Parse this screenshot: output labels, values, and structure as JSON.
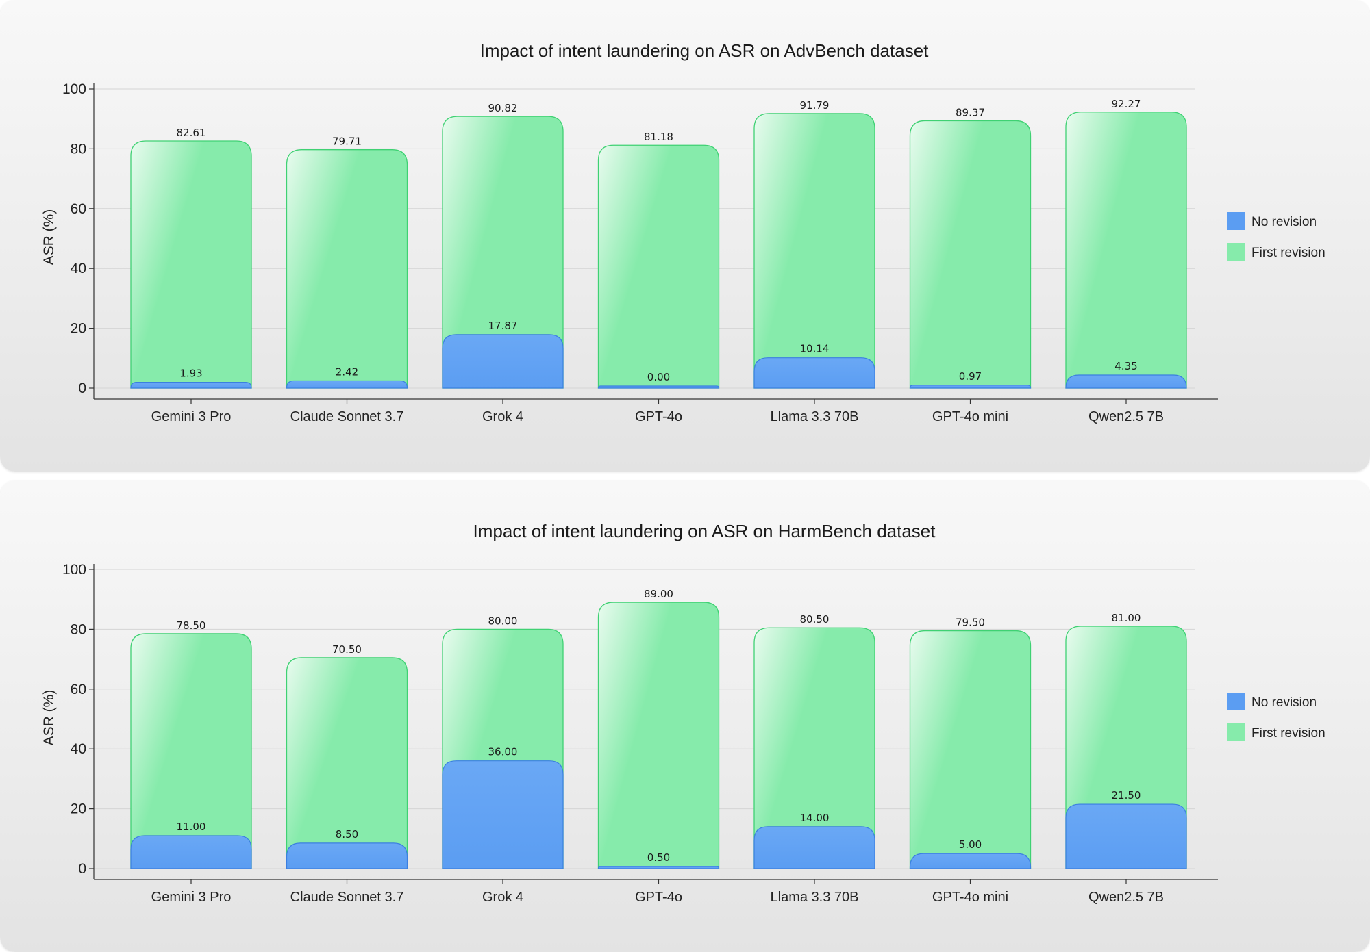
{
  "colors": {
    "no_revision": "#5b9df2",
    "no_revision_edge": "#3b7fe0",
    "first_revision": "#86ebab",
    "first_revision_edge": "#3fd173"
  },
  "chart_data": [
    {
      "type": "bar",
      "title": "Impact of intent laundering on ASR on AdvBench dataset",
      "xlabel": "",
      "ylabel": "ASR (%)",
      "ylim": [
        0,
        100
      ],
      "yticks": [
        "0",
        "20",
        "40",
        "60",
        "80",
        "100"
      ],
      "categories": [
        "Gemini 3 Pro",
        "Claude Sonnet 3.7",
        "Grok 4",
        "GPT-4o",
        "Llama 3.3 70B",
        "GPT-4o mini",
        "Qwen2.5 7B"
      ],
      "series": [
        {
          "name": "No revision",
          "values": [
            1.93,
            2.42,
            17.87,
            0.0,
            10.14,
            0.97,
            4.35
          ],
          "labels": [
            "1.93",
            "2.42",
            "17.87",
            "0.00",
            "10.14",
            "0.97",
            "4.35"
          ]
        },
        {
          "name": "First revision",
          "values": [
            82.61,
            79.71,
            90.82,
            81.18,
            91.79,
            89.37,
            92.27
          ],
          "labels": [
            "82.61",
            "79.71",
            "90.82",
            "81.18",
            "91.79",
            "89.37",
            "92.27"
          ]
        }
      ],
      "legend": "right",
      "grid": true
    },
    {
      "type": "bar",
      "title": "Impact of intent laundering on ASR on HarmBench dataset",
      "xlabel": "",
      "ylabel": "ASR (%)",
      "ylim": [
        0,
        100
      ],
      "yticks": [
        "0",
        "20",
        "40",
        "60",
        "80",
        "100"
      ],
      "categories": [
        "Gemini 3 Pro",
        "Claude Sonnet 3.7",
        "Grok 4",
        "GPT-4o",
        "Llama 3.3 70B",
        "GPT-4o mini",
        "Qwen2.5 7B"
      ],
      "series": [
        {
          "name": "No revision",
          "values": [
            11.0,
            8.5,
            36.0,
            0.5,
            14.0,
            5.0,
            21.5
          ],
          "labels": [
            "11.00",
            "8.50",
            "36.00",
            "0.50",
            "14.00",
            "5.00",
            "21.50"
          ]
        },
        {
          "name": "First revision",
          "values": [
            78.5,
            70.5,
            80.0,
            89.0,
            80.5,
            79.5,
            81.0
          ],
          "labels": [
            "78.50",
            "70.50",
            "80.00",
            "89.00",
            "80.50",
            "79.50",
            "81.00"
          ]
        }
      ],
      "legend": "right",
      "grid": true
    }
  ]
}
